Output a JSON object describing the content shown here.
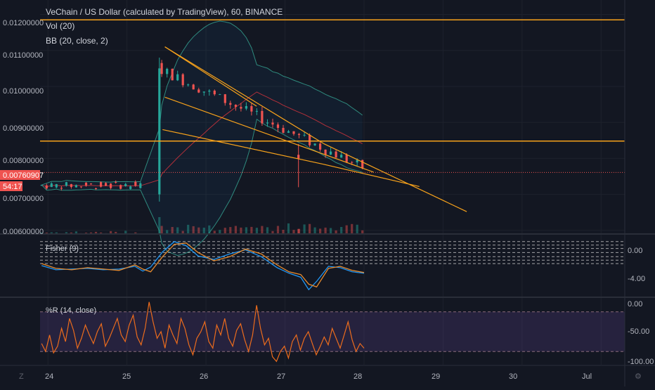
{
  "header": {
    "title": "VeChain / US Dollar (calculated by TradingView), 60, BINANCE",
    "vol_label": "Vol (20)",
    "bb_label": "BB (20, close, 2)"
  },
  "price_scale": {
    "ticks": [
      "0.01200000",
      "0.01100000",
      "0.01000000",
      "0.00900000",
      "0.00800000",
      "0.00700000",
      "0.00600000"
    ],
    "last_price": "0.00760907",
    "countdown": "54:17"
  },
  "fisher": {
    "label": "Fisher (9)",
    "ticks": [
      "0.00",
      "-4.00"
    ]
  },
  "williams": {
    "label": "%R (14, close)",
    "ticks": [
      "0.00",
      "-50.00",
      "-100.00"
    ]
  },
  "time_axis": {
    "labels": [
      "24",
      "25",
      "26",
      "27",
      "28",
      "29",
      "30",
      "Jul"
    ]
  },
  "colors": {
    "background": "#131722",
    "bull": "#26a69a",
    "bear": "#ef5350",
    "orange": "#f7a21b",
    "bb_band": "#2f8a7e",
    "fisher": "#e68a2e",
    "trigger": "#2196f3",
    "williams": "#ec6c1d"
  },
  "chart_data": [
    {
      "type": "candlestick",
      "title": "VeChain / US Dollar (calculated by TradingView), 60, BINANCE",
      "ylim": [
        0.0059,
        0.0124
      ],
      "x_unit": "day of month",
      "xlim": [
        23.9,
        31.3
      ],
      "segments": [
        {
          "x_start": 23.92,
          "x_end": 25.18,
          "base": 0.00725,
          "amplitude": 0.0001,
          "candle_spacing_hours": 1.5
        },
        {
          "x_start": 25.44,
          "x_end": 27.98,
          "base_start": 0.01045,
          "base_end": 0.00775,
          "amplitude": 0.00015,
          "candle_spacing_hours": 1.6
        }
      ],
      "spike": {
        "x": 25.41,
        "open": 0.007,
        "close": 0.0105,
        "high": 0.0108,
        "low": 0.0068
      },
      "last_price": 0.00760907,
      "horizontal_lines": [
        0.01185,
        0.00848
      ],
      "trend_lines": [
        {
          "from": [
            25.48,
            0.0111
          ],
          "to": [
            26.64,
            0.00945
          ]
        },
        {
          "from": [
            25.48,
            0.0111
          ],
          "to": [
            27.49,
            0.00841
          ]
        },
        {
          "from": [
            25.48,
            0.0097
          ],
          "to": [
            28.12,
            0.00762
          ]
        },
        {
          "from": [
            25.45,
            0.0088
          ],
          "to": [
            27.48,
            0.00784
          ]
        }
      ],
      "wedge_extension_lines": [
        {
          "from": [
            27.49,
            0.00841
          ],
          "to": [
            29.3,
            0.00652
          ]
        },
        {
          "from": [
            27.48,
            0.00784
          ],
          "to": [
            28.7,
            0.00722
          ]
        }
      ]
    },
    {
      "type": "line",
      "title": "Fisher (9)",
      "ylim": [
        -6.3,
        2.5
      ],
      "levels": [
        1.6,
        1.1,
        0.6,
        0.0,
        -0.6,
        -1.1,
        -1.6
      ],
      "series": [
        {
          "name": "Fisher",
          "x": [
            23.92,
            24.1,
            24.3,
            24.5,
            24.7,
            24.9,
            25.1,
            25.2,
            25.3,
            25.45,
            25.6,
            25.75,
            25.9,
            26.1,
            26.3,
            26.5,
            26.7,
            26.9,
            27.05,
            27.2,
            27.3,
            27.4,
            27.55,
            27.7,
            27.85,
            28.0
          ],
          "values": [
            -1.9,
            -2.5,
            -2.4,
            -2.3,
            -2.5,
            -2.4,
            -2.0,
            -2.7,
            -2.1,
            0.1,
            1.6,
            1.0,
            -0.5,
            -1.0,
            -0.2,
            0.4,
            -0.6,
            -2.2,
            -3.0,
            -3.6,
            -5.4,
            -4.2,
            -2.0,
            -2.2,
            -2.8,
            -3.0
          ]
        },
        {
          "name": "Trigger",
          "x": [
            23.92,
            24.1,
            24.3,
            24.5,
            24.7,
            24.9,
            25.1,
            25.2,
            25.3,
            25.45,
            25.6,
            25.75,
            25.9,
            26.1,
            26.3,
            26.5,
            26.7,
            26.9,
            27.05,
            27.2,
            27.3,
            27.4,
            27.55,
            27.7,
            27.85,
            28.0
          ],
          "values": [
            -1.6,
            -2.3,
            -2.5,
            -2.2,
            -2.4,
            -2.6,
            -1.8,
            -2.4,
            -2.8,
            -0.6,
            1.2,
            1.4,
            0.0,
            -1.2,
            -0.6,
            0.5,
            -0.2,
            -1.8,
            -2.8,
            -3.2,
            -4.6,
            -5.0,
            -2.3,
            -2.0,
            -2.6,
            -2.9
          ]
        }
      ]
    },
    {
      "type": "line",
      "title": "%R (14, close)",
      "ylim": [
        -100,
        0
      ],
      "band": [
        -20,
        -80
      ],
      "series": [
        {
          "name": "%R",
          "x_start": 23.92,
          "x_end": 28.0,
          "values": [
            -68,
            -80,
            -55,
            -82,
            -72,
            -45,
            -65,
            -30,
            -48,
            -75,
            -60,
            -40,
            -55,
            -68,
            -50,
            -38,
            -72,
            -60,
            -45,
            -30,
            -55,
            -65,
            -40,
            -25,
            -58,
            -70,
            -45,
            -5,
            -35,
            -60,
            -50,
            -75,
            -40,
            -55,
            -68,
            -30,
            -45,
            -70,
            -85,
            -60,
            -50,
            -35,
            -65,
            -75,
            -40,
            -55,
            -30,
            -60,
            -72,
            -48,
            -38,
            -62,
            -80,
            -55,
            -10,
            -45,
            -70,
            -60,
            -88,
            -95,
            -80,
            -72,
            -90,
            -65,
            -55,
            -78,
            -60,
            -50,
            -68,
            -85,
            -72,
            -58,
            -70,
            -45,
            -60,
            -75,
            -55,
            -35,
            -62,
            -80,
            -68,
            -75
          ]
        }
      ]
    }
  ]
}
